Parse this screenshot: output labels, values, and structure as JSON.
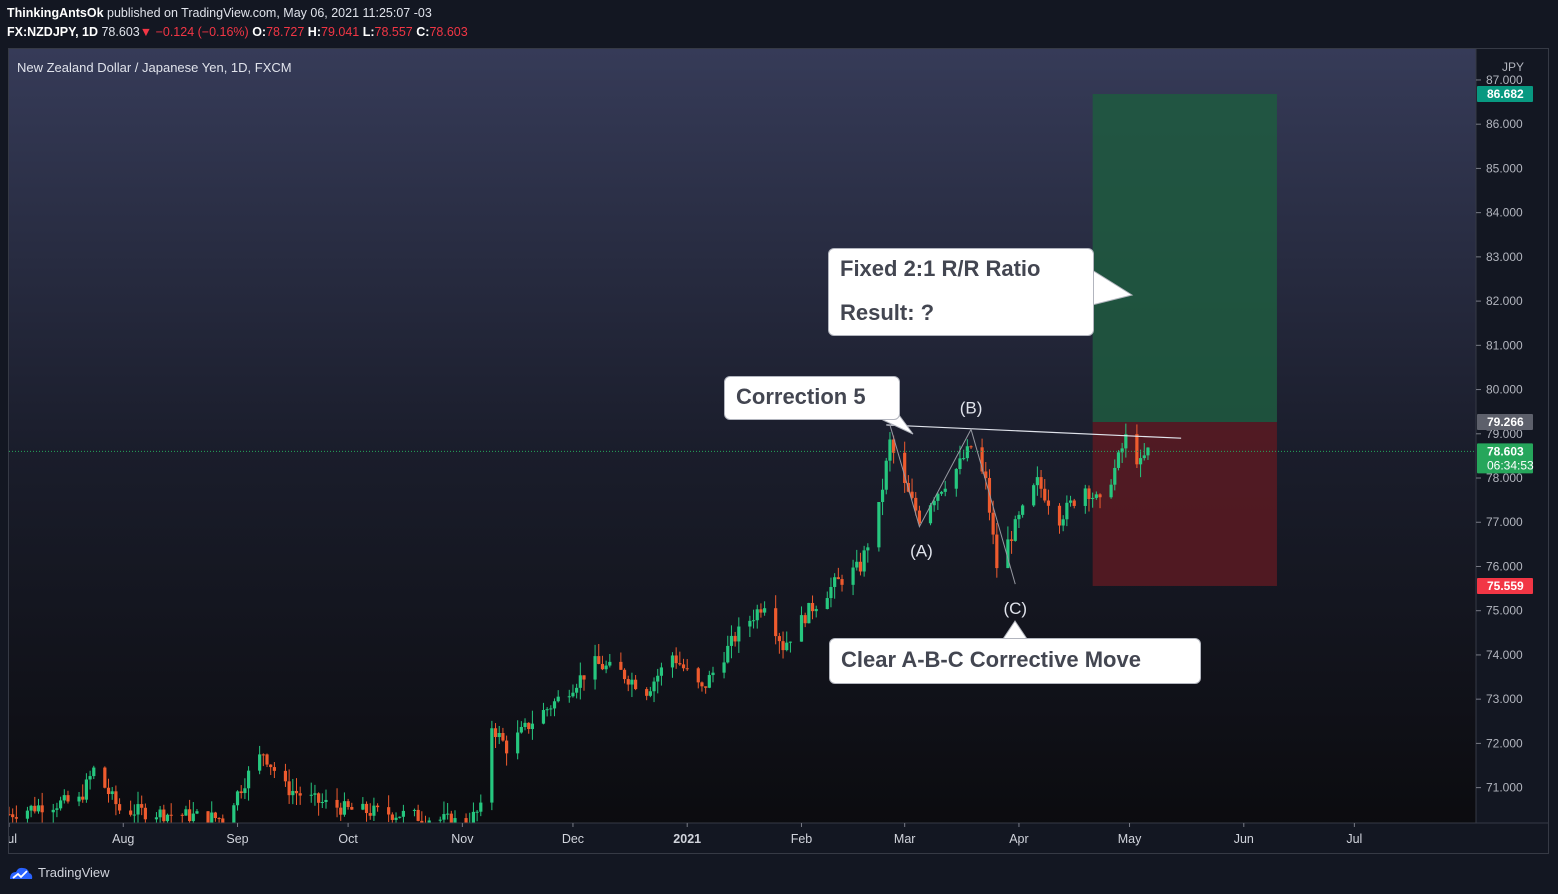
{
  "header": {
    "author": "ThinkingAntsOk",
    "published_text": "published on TradingView.com, May 06, 2021 11:25:07 -03",
    "symbol": "FX:NZDJPY, 1D",
    "last": "78.603",
    "change": "−0.124 (−0.16%)",
    "open_label": "O:",
    "open": "78.727",
    "high_label": "H:",
    "high": "79.041",
    "low_label": "L:",
    "low": "78.557",
    "close_label": "C:",
    "close": "78.603"
  },
  "chart_title": "New Zealand Dollar / Japanese Yen, 1D, FXCM",
  "currency_label": "JPY",
  "colors": {
    "up": "#26c77f",
    "down": "#ee5b2e",
    "target_zone": "#1e5a3f",
    "stop_zone": "#5a1a22",
    "target_tag": "#089981",
    "stop_tag": "#f23645",
    "price_tag": "#26a65b"
  },
  "price_tags": {
    "target": "86.682",
    "entry": "79.266",
    "current": "78.603",
    "countdown": "06:34:53",
    "stop": "75.559"
  },
  "callouts": {
    "rr_line1": "Fixed 2:1 R/R Ratio",
    "rr_line2": "Result: ?",
    "correction": "Correction 5",
    "abc": "Clear A-B-C Corrective Move"
  },
  "wave_labels": {
    "a": "(A)",
    "b": "(B)",
    "c": "(C)"
  },
  "footer_brand": "TradingView",
  "chart_data": {
    "type": "candlestick",
    "title": "New Zealand Dollar / Japanese Yen, 1D, FXCM",
    "ylabel": "JPY",
    "ylim": [
      70.2,
      87.7
    ],
    "y_ticks": [
      71,
      72,
      73,
      74,
      75,
      76,
      77,
      78,
      79,
      80,
      81,
      82,
      83,
      84,
      85,
      86,
      87
    ],
    "x_ticks": [
      {
        "label": "Jul",
        "date": "2020-07-01"
      },
      {
        "label": "Aug",
        "date": "2020-08-01"
      },
      {
        "label": "Sep",
        "date": "2020-09-01"
      },
      {
        "label": "Oct",
        "date": "2020-10-01"
      },
      {
        "label": "Nov",
        "date": "2020-11-01"
      },
      {
        "label": "Dec",
        "date": "2020-12-01"
      },
      {
        "label": "2021",
        "date": "2021-01-01"
      },
      {
        "label": "Feb",
        "date": "2021-02-01"
      },
      {
        "label": "Mar",
        "date": "2021-03-01"
      },
      {
        "label": "Apr",
        "date": "2021-04-01"
      },
      {
        "label": "May",
        "date": "2021-05-01"
      },
      {
        "label": "Jun",
        "date": "2021-06-01"
      },
      {
        "label": "Jul",
        "date": "2021-07-01"
      }
    ],
    "xlim": [
      "2020-07-01",
      "2021-08-03"
    ],
    "anchors": [
      [
        "2020-07-01",
        70.4
      ],
      [
        "2020-07-10",
        70.6
      ],
      [
        "2020-07-20",
        70.7
      ],
      [
        "2020-07-24",
        71.4
      ],
      [
        "2020-07-31",
        70.5
      ],
      [
        "2020-08-14",
        70.4
      ],
      [
        "2020-08-28",
        70.3
      ],
      [
        "2020-09-04",
        71.3
      ],
      [
        "2020-09-08",
        71.8
      ],
      [
        "2020-09-14",
        71.0
      ],
      [
        "2020-09-22",
        70.7
      ],
      [
        "2020-10-01",
        70.5
      ],
      [
        "2020-10-15",
        70.4
      ],
      [
        "2020-11-02",
        70.2
      ],
      [
        "2020-11-06",
        70.5
      ],
      [
        "2020-11-09",
        72.4
      ],
      [
        "2020-11-13",
        71.9
      ],
      [
        "2020-11-20",
        72.5
      ],
      [
        "2020-11-27",
        73.0
      ],
      [
        "2020-12-07",
        73.8
      ],
      [
        "2020-12-14",
        73.6
      ],
      [
        "2020-12-21",
        73.2
      ],
      [
        "2020-12-28",
        74.0
      ],
      [
        "2021-01-05",
        73.2
      ],
      [
        "2021-01-14",
        74.4
      ],
      [
        "2021-01-22",
        75.2
      ],
      [
        "2021-01-27",
        74.2
      ],
      [
        "2021-02-03",
        75.0
      ],
      [
        "2021-02-10",
        75.6
      ],
      [
        "2021-02-17",
        76.0
      ],
      [
        "2021-02-22",
        77.3
      ],
      [
        "2021-02-25",
        78.8
      ],
      [
        "2021-03-01",
        77.8
      ],
      [
        "2021-03-05",
        77.1
      ],
      [
        "2021-03-09",
        77.6
      ],
      [
        "2021-03-15",
        78.2
      ],
      [
        "2021-03-19",
        78.7
      ],
      [
        "2021-03-23",
        77.9
      ],
      [
        "2021-03-26",
        76.0
      ],
      [
        "2021-03-31",
        76.9
      ],
      [
        "2021-04-06",
        77.9
      ],
      [
        "2021-04-12",
        77.1
      ],
      [
        "2021-04-19",
        77.8
      ],
      [
        "2021-04-23",
        77.4
      ],
      [
        "2021-04-27",
        78.2
      ],
      [
        "2021-04-30",
        78.9
      ],
      [
        "2021-05-04",
        78.3
      ],
      [
        "2021-05-06",
        78.6
      ]
    ],
    "risk_reward": {
      "entry": 79.266,
      "target": 86.682,
      "stop": 75.559,
      "start": "2021-04-21",
      "end": "2021-06-10"
    },
    "trendline": {
      "start": [
        "2021-02-24",
        79.2
      ],
      "end": [
        "2021-05-15",
        78.9
      ]
    },
    "abc_wave": [
      [
        "2021-02-25",
        79.2
      ],
      [
        "2021-03-05",
        76.9
      ],
      [
        "2021-03-19",
        79.1
      ],
      [
        "2021-03-31",
        75.6
      ]
    ],
    "current_price": 78.603
  }
}
